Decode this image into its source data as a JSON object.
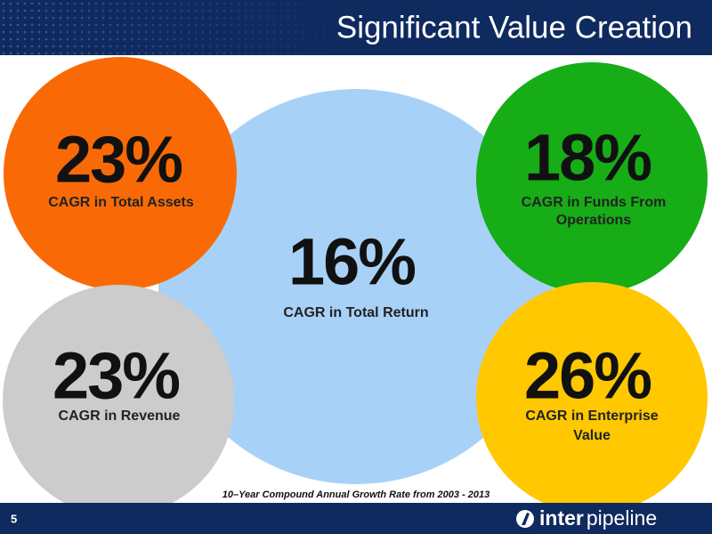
{
  "header": {
    "title": "Significant Value Creation"
  },
  "circles": [
    {
      "value": "16%",
      "label_lines": [
        "CAGR in Total Return"
      ]
    },
    {
      "value": "23%",
      "label_lines": [
        "CAGR in Total Assets"
      ]
    },
    {
      "value": "23%",
      "label_lines": [
        "CAGR in Revenue"
      ]
    },
    {
      "value": "18%",
      "label_lines": [
        "CAGR in Funds From",
        "Operations"
      ]
    },
    {
      "value": "26%",
      "label_lines": [
        "CAGR in Enterprise",
        "Value"
      ]
    }
  ],
  "footnote": "10–Year Compound Annual Growth Rate from 2003 - 2013",
  "footer": {
    "page_number": "5",
    "logo_bold": "inter",
    "logo_regular": "pipeline"
  }
}
